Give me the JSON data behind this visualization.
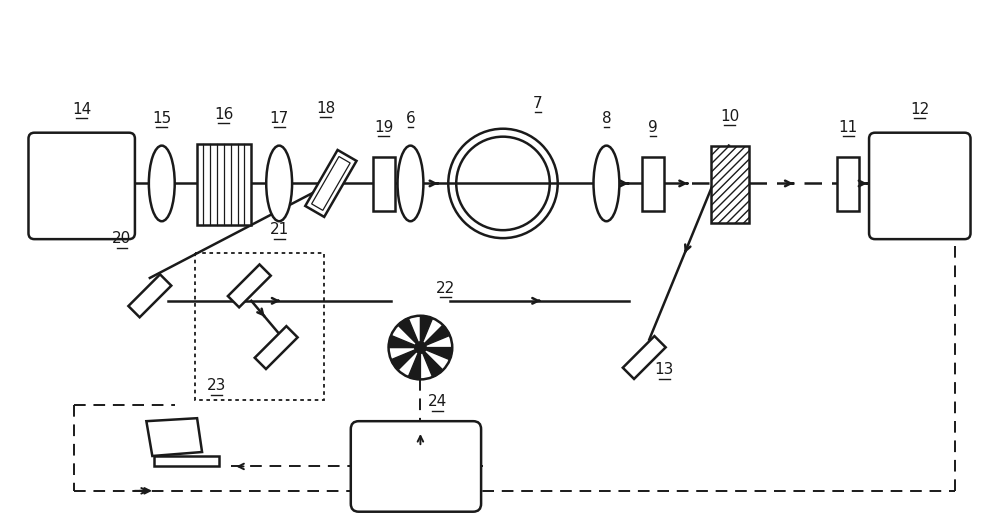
{
  "bg_color": "#ffffff",
  "line_color": "#1a1a1a",
  "label_color": "#1a1a1a",
  "fig_width": 10.0,
  "fig_height": 5.31,
  "dpi": 100
}
